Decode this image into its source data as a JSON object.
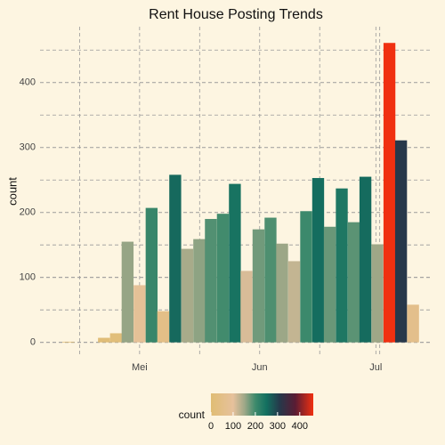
{
  "chart_data": {
    "type": "bar",
    "title": "Rent House Posting Trends",
    "y_label": "count",
    "x": [
      -18.4,
      -9.2,
      -6.1,
      -3.1,
      0,
      3.1,
      6.1,
      9.2,
      12.3,
      15.4,
      18.4,
      21.5,
      24.6,
      27.6,
      30.7,
      33.8,
      36.8,
      39.9,
      43.0,
      46.1,
      49.1,
      52.2,
      55.3,
      58.3,
      61.4,
      64.5,
      67.5,
      70.6
    ],
    "values": [
      1,
      7,
      14,
      155,
      88,
      207,
      48,
      258,
      144,
      159,
      190,
      198,
      244,
      110,
      174,
      192,
      152,
      125,
      202,
      253,
      178,
      237,
      185,
      255,
      151,
      461,
      311,
      58
    ],
    "xlim": [
      -25.7,
      75.4
    ],
    "xticks": [
      {
        "value": 0,
        "label": "Mei"
      },
      {
        "value": 31,
        "label": "Jun"
      },
      {
        "value": 61,
        "label": "Jul"
      }
    ],
    "ylim": [
      -21,
      486
    ],
    "yticks": [
      0,
      100,
      200,
      300,
      400
    ],
    "grid": true,
    "fill_scale": {
      "title": "count",
      "limits": [
        0,
        461
      ],
      "ticks": [
        0,
        100,
        200,
        300,
        400
      ],
      "stops": [
        0,
        100,
        150,
        200,
        250,
        310,
        380,
        461
      ],
      "colors": [
        "#e0bd74",
        "#e6c19c",
        "#a0a888",
        "#3e8a6c",
        "#137060",
        "#26384a",
        "#5a1c34",
        "#f03010"
      ]
    }
  }
}
